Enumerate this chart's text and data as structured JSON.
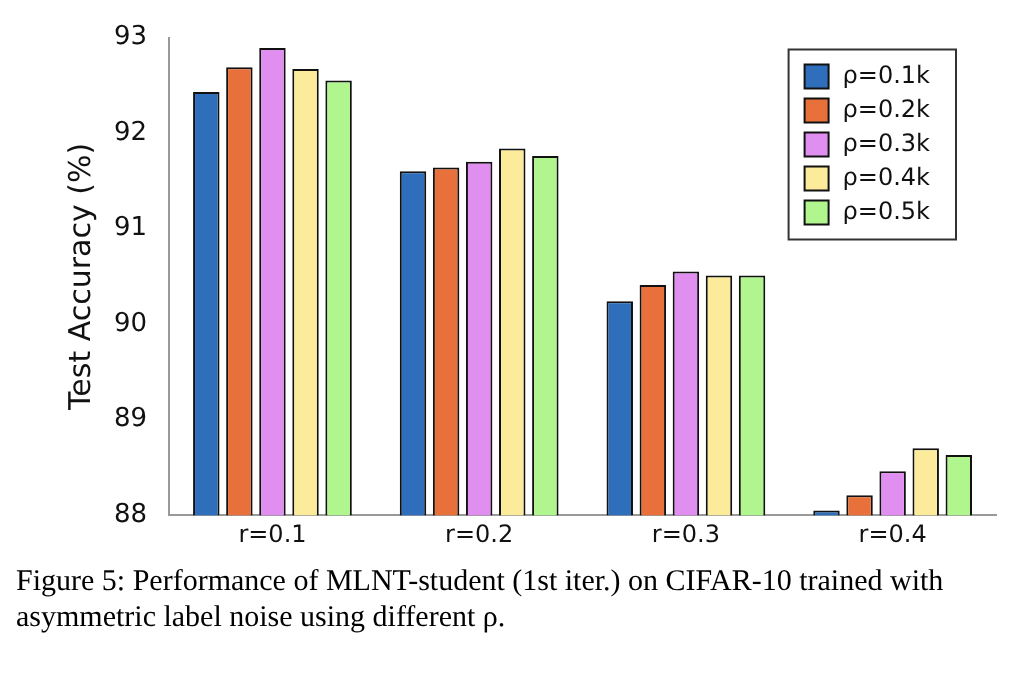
{
  "chart_data": {
    "type": "bar",
    "ylabel": "Test Accuracy (%)",
    "categories": [
      "r=0.1",
      "r=0.2",
      "r=0.3",
      "r=0.4"
    ],
    "series": [
      {
        "name": "ρ=0.1k",
        "color": "#2f6eba",
        "values": [
          92.43,
          91.6,
          90.24,
          88.05
        ]
      },
      {
        "name": "ρ=0.2k",
        "color": "#e8703a",
        "values": [
          92.69,
          91.64,
          90.41,
          88.21
        ]
      },
      {
        "name": "ρ=0.3k",
        "color": "#e08ef0",
        "values": [
          92.89,
          91.7,
          90.55,
          88.46
        ]
      },
      {
        "name": "ρ=0.4k",
        "color": "#fdeb9c",
        "values": [
          92.67,
          91.84,
          90.51,
          88.7
        ]
      },
      {
        "name": "ρ=0.5k",
        "color": "#b0f58e",
        "values": [
          92.55,
          91.76,
          90.51,
          88.63
        ]
      }
    ],
    "ylim": [
      88,
      93
    ],
    "yticks": [
      88,
      89,
      90,
      91,
      92,
      93
    ],
    "grid": false,
    "legend": "top right",
    "annotations": [
      "Figure 5: Performance of MLNT-student (1st iter.) on CIFAR-10 trained with asymmetric label noise using different ρ."
    ]
  }
}
